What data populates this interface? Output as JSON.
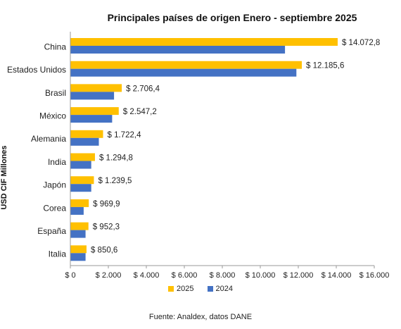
{
  "chart_data": {
    "type": "bar",
    "orientation": "horizontal",
    "title": "Principales países de origen Enero - septiembre 2025",
    "ylabel": "USD CIF Millones",
    "xlabel": "",
    "categories": [
      "China",
      "Estados Unidos",
      "Brasil",
      "México",
      "Alemania",
      "India",
      "Japón",
      "Corea",
      "España",
      "Italia"
    ],
    "series": [
      {
        "name": "2025",
        "color": "#FFC000",
        "values": [
          14072.8,
          12185.6,
          2706.4,
          2547.2,
          1722.4,
          1294.8,
          1239.5,
          969.9,
          952.3,
          850.6
        ],
        "labels": [
          "$ 14.072,8",
          "$ 12.185,6",
          "$ 2.706,4",
          "$ 2.547,2",
          "$ 1.722,4",
          "$ 1.294,8",
          "$ 1.239,5",
          "$ 969,9",
          "$ 952,3",
          "$ 850,6"
        ]
      },
      {
        "name": "2024",
        "color": "#4472C4",
        "values": [
          11300,
          11900,
          2300,
          2200,
          1500,
          1100,
          1100,
          700,
          800,
          800
        ]
      }
    ],
    "xlim": [
      0,
      16000
    ],
    "x_ticks": [
      "$ 0",
      "$ 2.000",
      "$ 4.000",
      "$ 6.000",
      "$ 8.000",
      "$ 10.000",
      "$ 12.000",
      "$ 14.000",
      "$ 16.000"
    ],
    "grid": false,
    "legend_position": "bottom",
    "source": "Fuente: Analdex, datos DANE"
  }
}
